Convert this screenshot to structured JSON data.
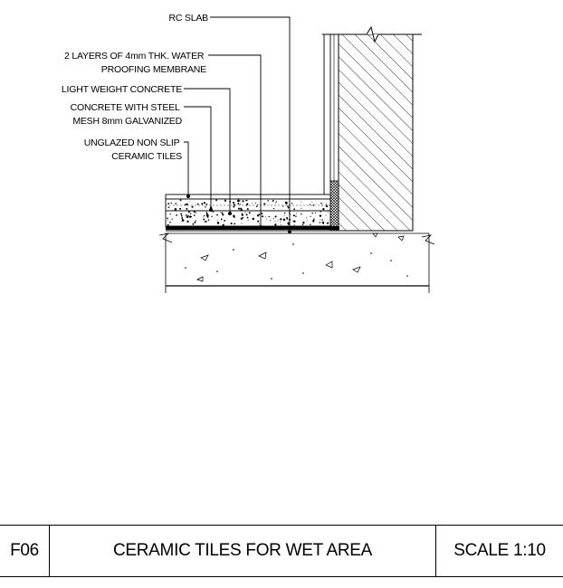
{
  "callouts": [
    {
      "id": "rc-slab",
      "lines": [
        "RC SLAB"
      ]
    },
    {
      "id": "waterproofing",
      "lines": [
        "2 LAYERS OF 4mm THK. WATER",
        "PROOFING MEMBRANE"
      ]
    },
    {
      "id": "lw-concrete",
      "lines": [
        "LIGHT WEIGHT CONCRETE"
      ]
    },
    {
      "id": "steel-mesh",
      "lines": [
        "CONCRETE WITH STEEL",
        "MESH 8mm GALVANIZED"
      ]
    },
    {
      "id": "tiles",
      "lines": [
        "UNGLAZED NON SLIP",
        "CERAMIC TILES"
      ]
    }
  ],
  "title_block": {
    "code": "F06",
    "title": "CERAMIC TILES FOR WET AREA",
    "scale": "SCALE 1:10"
  }
}
